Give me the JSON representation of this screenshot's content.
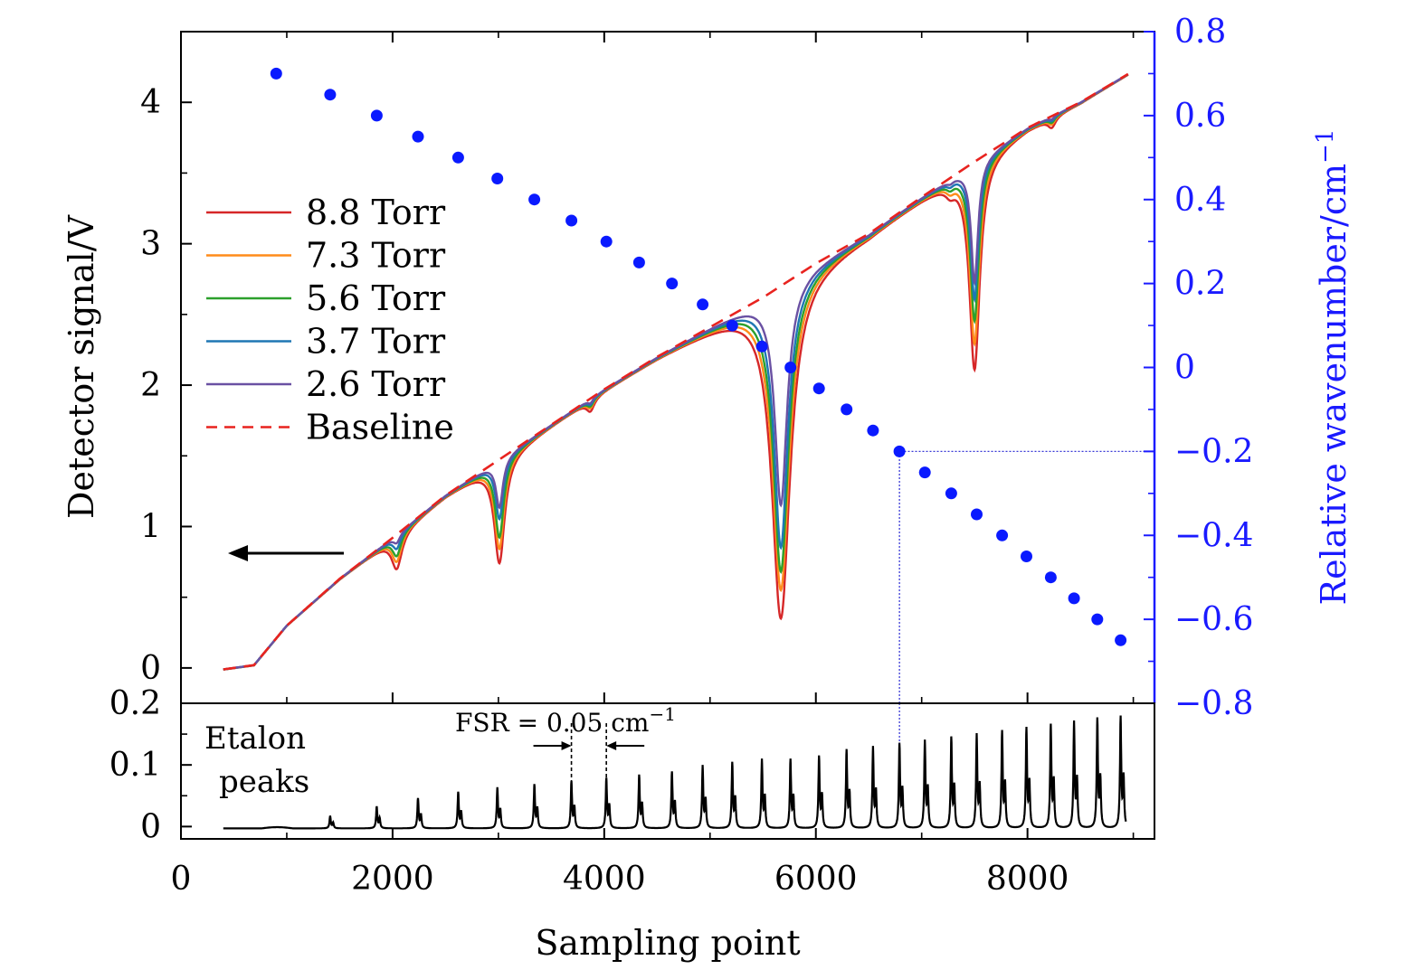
{
  "chart_data": [
    {
      "type": "line",
      "panel": "top",
      "xlabel": "Sampling point",
      "ylabel": "Detector signal/V",
      "y2label": "Relative wavenumber/cm",
      "y2label_sup": "−1",
      "xlim": [
        0,
        9200
      ],
      "ylim": [
        -0.25,
        4.5
      ],
      "y2lim": [
        -0.8,
        0.8
      ],
      "xticks": [
        0,
        2000,
        4000,
        6000,
        8000
      ],
      "xtick_labels": [
        "0",
        "2000",
        "4000",
        "6000",
        "8000"
      ],
      "yticks": [
        0,
        1,
        2,
        3,
        4
      ],
      "ytick_labels": [
        "0",
        "1",
        "2",
        "3",
        "4"
      ],
      "y2ticks": [
        0.8,
        0.6,
        0.4,
        0.2,
        0,
        -0.2,
        -0.4,
        -0.6,
        -0.8
      ],
      "y2tick_labels": [
        "0.8",
        "0.6",
        "0.4",
        "0.2",
        "0",
        "−0.2",
        "−0.4",
        "−0.6",
        "−0.8"
      ],
      "legend_position": "left",
      "baseline": {
        "name": "Baseline",
        "color": "#e8231f",
        "points": [
          [
            400,
            -0.01
          ],
          [
            690,
            0.02
          ],
          [
            1000,
            0.3
          ],
          [
            1500,
            0.63
          ],
          [
            2000,
            0.92
          ],
          [
            2500,
            1.22
          ],
          [
            3000,
            1.47
          ],
          [
            3500,
            1.72
          ],
          [
            4000,
            1.97
          ],
          [
            4500,
            2.2
          ],
          [
            5000,
            2.41
          ],
          [
            5500,
            2.62
          ],
          [
            6000,
            2.86
          ],
          [
            6500,
            3.07
          ],
          [
            7000,
            3.33
          ],
          [
            7500,
            3.58
          ],
          [
            8000,
            3.82
          ],
          [
            8500,
            4.0
          ],
          [
            8950,
            4.2
          ]
        ]
      },
      "absorption_lines": [
        {
          "center": 2040,
          "width": 40,
          "depths": [
            0.24,
            0.19,
            0.15,
            0.1,
            0.06
          ]
        },
        {
          "center": 3010,
          "width": 40,
          "depths": [
            0.73,
            0.63,
            0.55,
            0.42,
            0.34
          ]
        },
        {
          "center": 3870,
          "width": 30,
          "depths": [
            0.08,
            0.06,
            0.05,
            0.04,
            0.03
          ]
        },
        {
          "center": 5670,
          "width": 70,
          "depths": [
            2.35,
            2.15,
            2.02,
            1.85,
            1.55
          ]
        },
        {
          "center": 7270,
          "width": 35,
          "depths": [
            0.06,
            0.05,
            0.04,
            0.03,
            0.02
          ]
        },
        {
          "center": 7500,
          "width": 40,
          "depths": [
            1.46,
            1.28,
            1.12,
            0.97,
            0.85
          ]
        },
        {
          "center": 8230,
          "width": 30,
          "depths": [
            0.07,
            0.05,
            0.04,
            0.03,
            0.02
          ]
        }
      ],
      "series": [
        {
          "name": "8.8 Torr",
          "color": "#d62728"
        },
        {
          "name": "7.3 Torr",
          "color": "#ff8c1a"
        },
        {
          "name": "5.6 Torr",
          "color": "#2ca02c"
        },
        {
          "name": "3.7 Torr",
          "color": "#1f77b4"
        },
        {
          "name": "2.6 Torr",
          "color": "#6a51a3"
        }
      ],
      "wavenumber_points": {
        "color": "#0a1aff",
        "x": [
          900,
          1410,
          1850,
          2240,
          2620,
          2990,
          3340,
          3690,
          4020,
          4330,
          4640,
          4930,
          5210,
          5490,
          5760,
          6030,
          6290,
          6540,
          6790,
          7030,
          7280,
          7520,
          7760,
          7990,
          8220,
          8440,
          8660,
          8880
        ],
        "y": [
          0.7,
          0.65,
          0.6,
          0.55,
          0.5,
          0.45,
          0.4,
          0.35,
          0.3,
          0.25,
          0.2,
          0.15,
          0.1,
          0.05,
          0.0,
          -0.05,
          -0.1,
          -0.15,
          -0.2,
          -0.25,
          -0.3,
          -0.35,
          -0.4,
          -0.45,
          -0.5,
          -0.55,
          -0.6,
          -0.65
        ]
      },
      "guide_lines": {
        "x": 6790,
        "y2": -0.2
      }
    },
    {
      "type": "line",
      "panel": "bottom",
      "xlim": [
        0,
        9200
      ],
      "ylim": [
        -0.02,
        0.2
      ],
      "yticks": [
        0,
        0.1,
        0.2
      ],
      "ytick_labels": [
        "0",
        "0.1",
        "0.2"
      ],
      "annotation": [
        "Etalon",
        "peaks"
      ],
      "fsr_label": "FSR = 0.05 cm",
      "fsr_sup": "−1",
      "fsr_markers": [
        3690,
        4020
      ],
      "etalon_peaks": {
        "x": [
          1410,
          1850,
          2240,
          2620,
          2990,
          3340,
          3690,
          4020,
          4330,
          4640,
          4930,
          5210,
          5490,
          5760,
          6030,
          6290,
          6540,
          6790,
          7030,
          7280,
          7520,
          7760,
          7990,
          8220,
          8440,
          8660,
          8880
        ],
        "heights": [
          0.02,
          0.035,
          0.048,
          0.058,
          0.065,
          0.07,
          0.075,
          0.08,
          0.085,
          0.09,
          0.1,
          0.105,
          0.11,
          0.11,
          0.115,
          0.125,
          0.13,
          0.135,
          0.14,
          0.145,
          0.15,
          0.155,
          0.16,
          0.165,
          0.17,
          0.175,
          0.178
        ]
      }
    }
  ]
}
